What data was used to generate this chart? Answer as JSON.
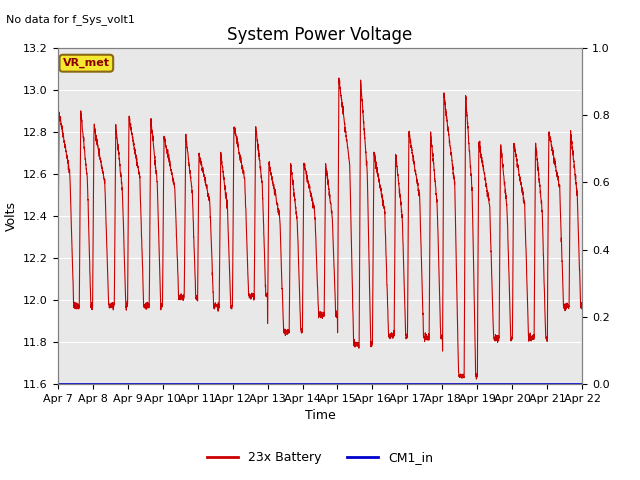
{
  "title": "System Power Voltage",
  "xlabel": "Time",
  "ylabel": "Volts",
  "top_left_text": "No data for f_Sys_volt1",
  "vr_met_label": "VR_met",
  "ylim_left": [
    11.6,
    13.2
  ],
  "ylim_right": [
    0.0,
    1.0
  ],
  "bg_color": "#e8e8e8",
  "fig_bg_color": "#ffffff",
  "line_color_battery": "#cc0000",
  "line_color_cm1": "#0000cc",
  "legend_battery": "23x Battery",
  "legend_cm1": "CM1_in",
  "xtick_labels": [
    "Apr 7",
    "Apr 8",
    "Apr 9",
    "Apr 10",
    "Apr 11",
    "Apr 12",
    "Apr 13",
    "Apr 14",
    "Apr 15",
    "Apr 16",
    "Apr 17",
    "Apr 18",
    "Apr 19",
    "Apr 20",
    "Apr 21",
    "Apr 22"
  ],
  "xtick_positions": [
    0,
    1,
    2,
    3,
    4,
    5,
    6,
    7,
    8,
    9,
    10,
    11,
    12,
    13,
    14,
    15
  ],
  "ytick_left": [
    11.6,
    11.8,
    12.0,
    12.2,
    12.4,
    12.6,
    12.8,
    13.0,
    13.2
  ],
  "ytick_right": [
    0.0,
    0.2,
    0.4,
    0.6,
    0.8,
    1.0
  ],
  "title_fontsize": 12,
  "axis_fontsize": 9,
  "tick_fontsize": 8,
  "peak_heights": [
    12.9,
    12.83,
    12.87,
    12.78,
    12.7,
    12.83,
    12.65,
    12.65,
    13.05,
    12.7,
    12.8,
    12.98,
    12.75,
    12.75,
    12.8
  ],
  "trough_depths": [
    11.97,
    11.97,
    11.97,
    12.01,
    11.97,
    12.02,
    11.85,
    11.93,
    11.79,
    11.83,
    11.82,
    11.64,
    11.82,
    11.82,
    11.97
  ]
}
